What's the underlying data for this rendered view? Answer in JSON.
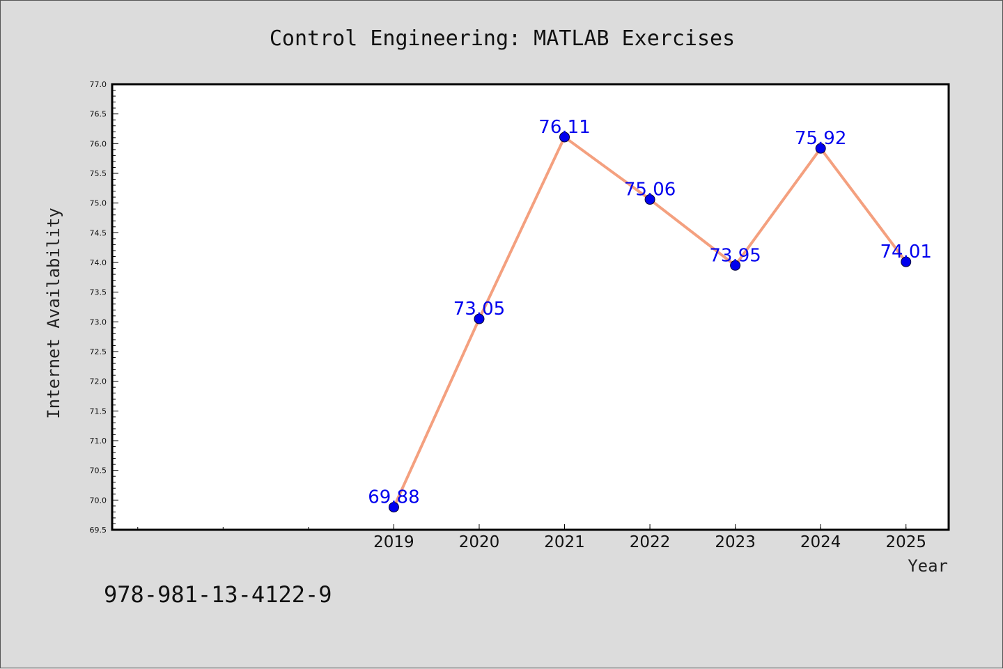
{
  "chart_data": {
    "type": "line",
    "title": "Control Engineering: MATLAB Exercises",
    "xlabel": "Year",
    "ylabel": "Internet Availability",
    "x": [
      2019,
      2020,
      2021,
      2022,
      2023,
      2024,
      2025
    ],
    "x_tick_labels": [
      "2019",
      "2020",
      "2021",
      "2022",
      "2023",
      "2024",
      "2025"
    ],
    "xlim": [
      2015.7,
      2025.5
    ],
    "ylim": [
      69.5,
      77.0
    ],
    "y_ticks": [
      "69.5",
      "70.0",
      "70.5",
      "71.0",
      "71.5",
      "72.0",
      "72.5",
      "73.0",
      "73.5",
      "74.0",
      "74.5",
      "75.0",
      "75.5",
      "76.0",
      "76.5",
      "77.0"
    ],
    "series": [
      {
        "values": [
          69.88,
          73.05,
          76.11,
          75.06,
          73.95,
          75.92,
          74.01
        ],
        "data_labels": [
          "69.88",
          "73.05",
          "76.11",
          "75.06",
          "73.95",
          "75.92",
          "74.01"
        ],
        "line_color": "#f4a07f",
        "marker_color": "#0000ee"
      }
    ],
    "grid": false,
    "legend": "none"
  },
  "footer": {
    "isbn": "978-981-13-4122-9"
  },
  "colors": {
    "background": "#dcdcdc",
    "plot_background": "#ffffff",
    "axis": "#000000"
  }
}
